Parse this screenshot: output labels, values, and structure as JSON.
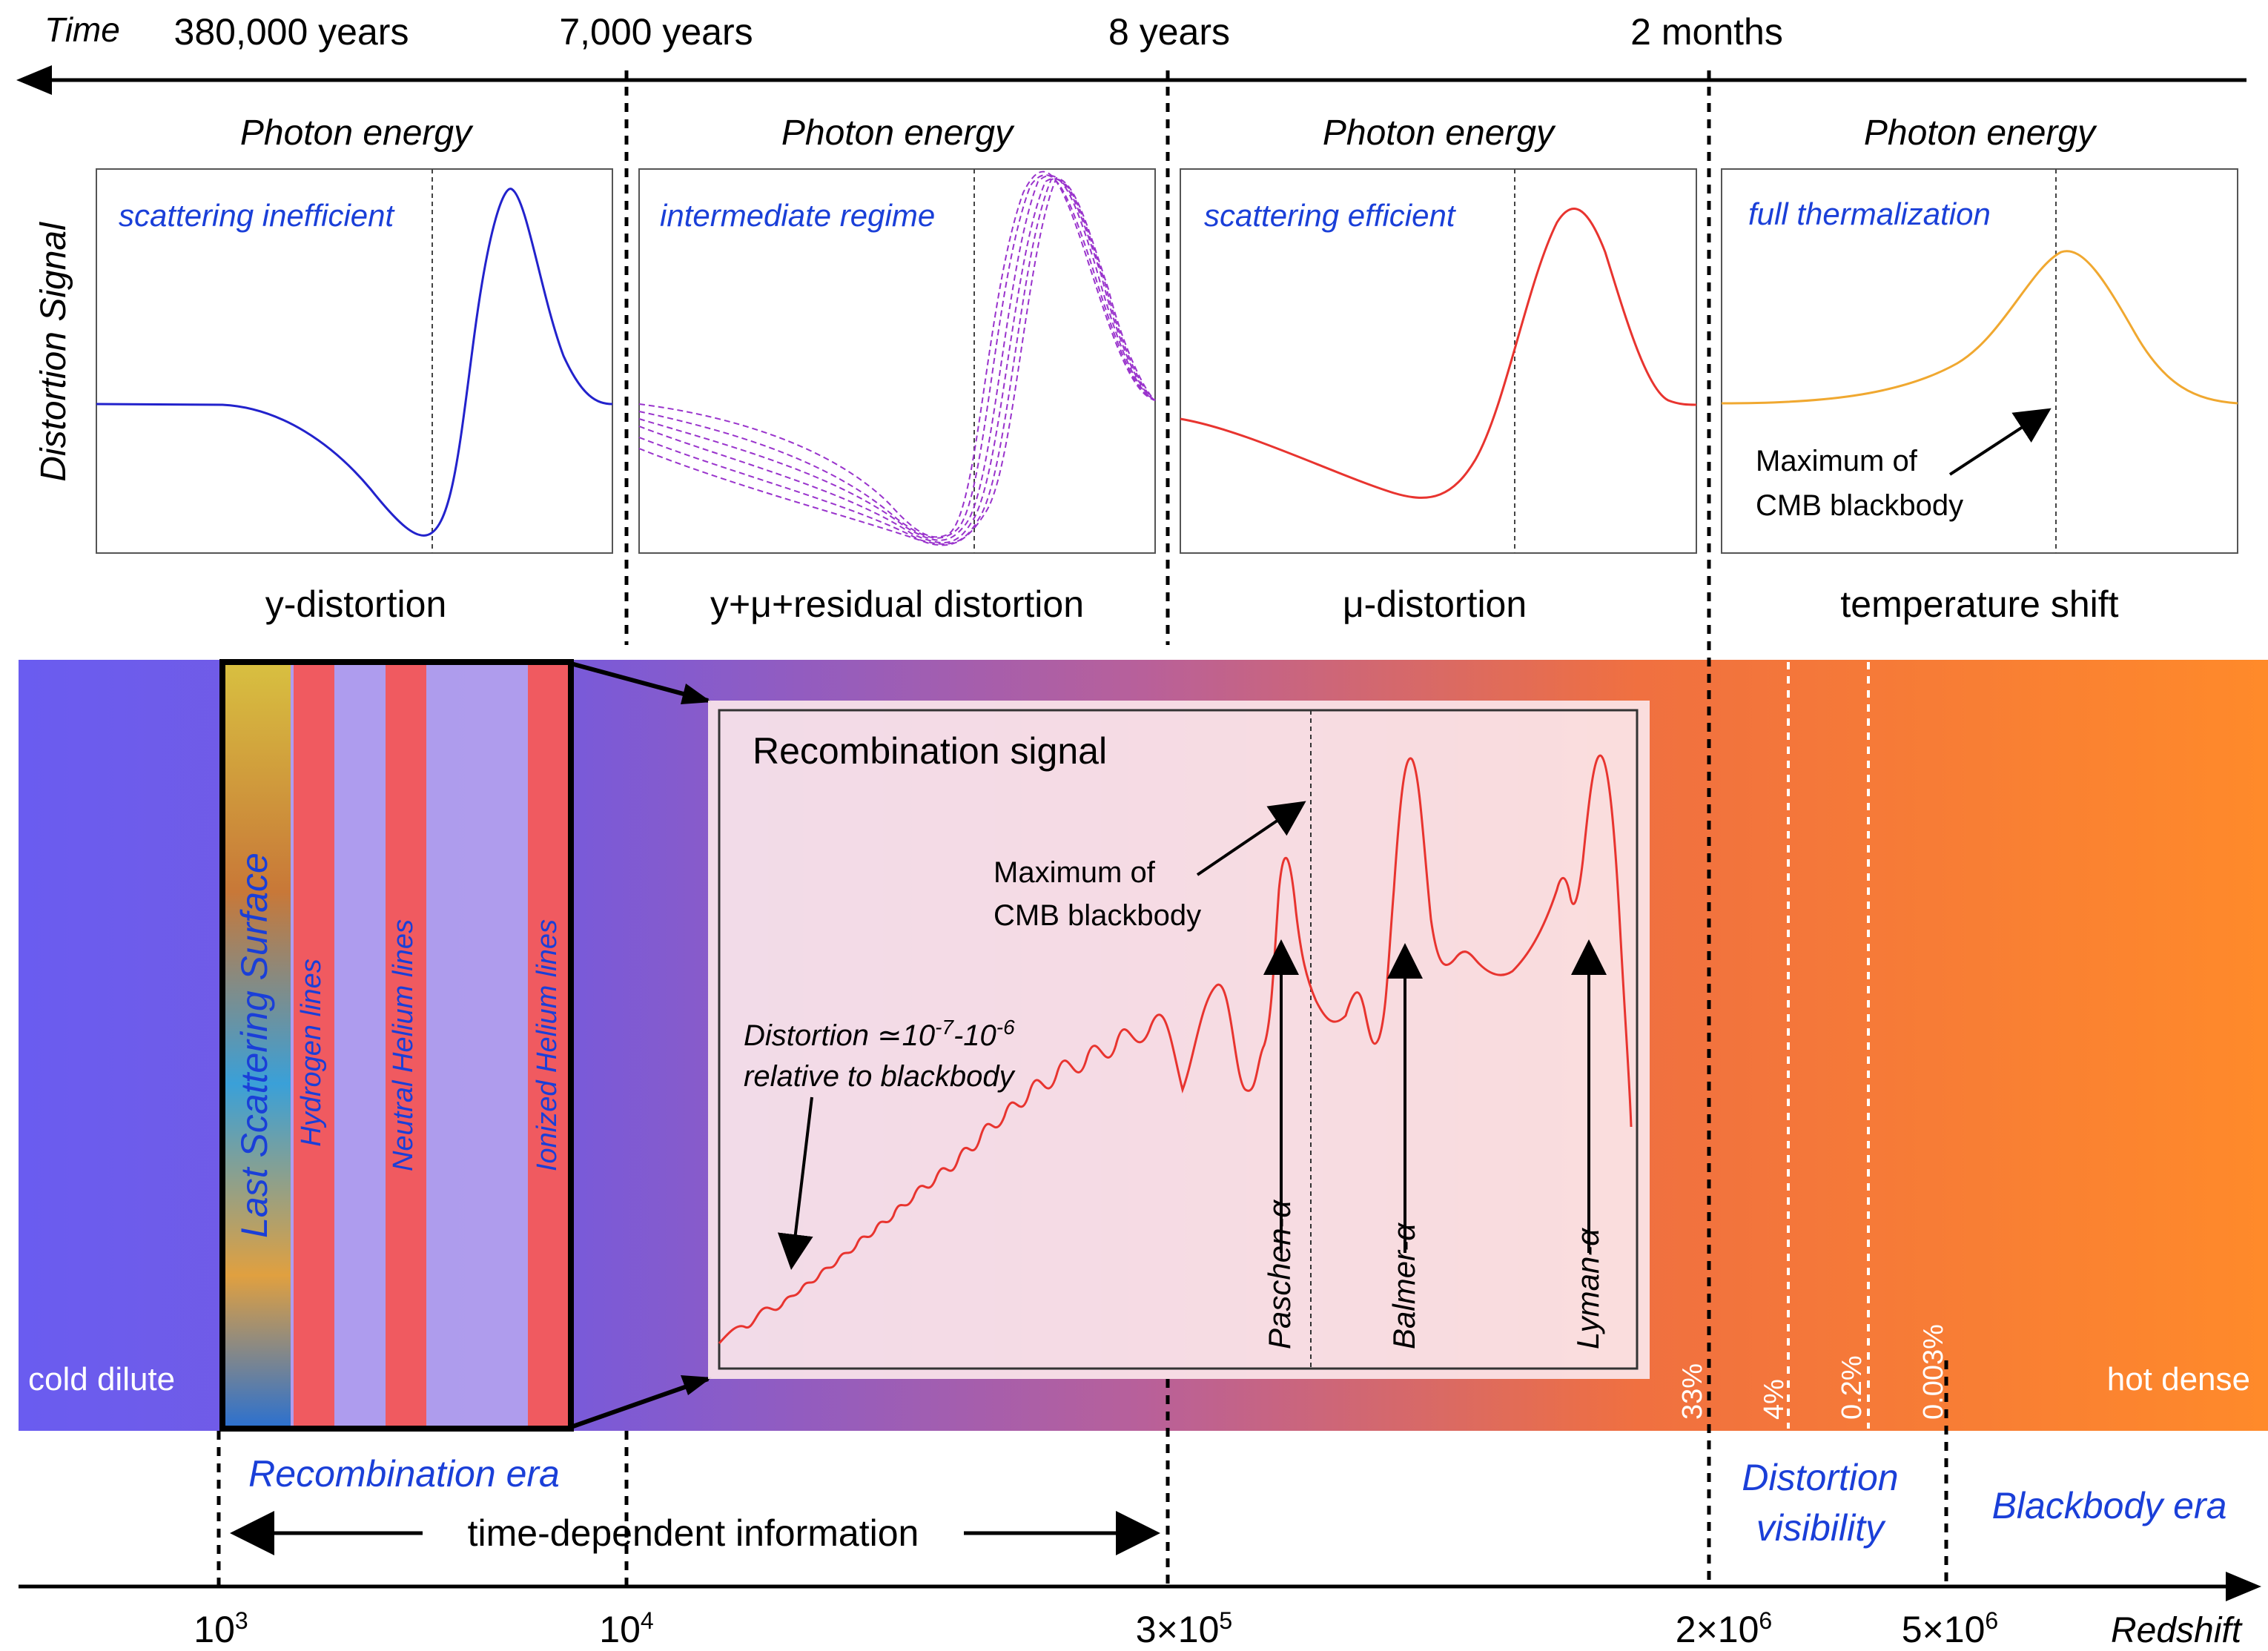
{
  "time_axis": {
    "label": "Time",
    "ticks": [
      "380,000 years",
      "7,000 years",
      "8 years",
      "2 months"
    ]
  },
  "panels": [
    {
      "header": "Photon energy",
      "regime": "scattering inefficient",
      "caption": "y-distortion",
      "color": "#2222cc"
    },
    {
      "header": "Photon energy",
      "regime": "intermediate regime",
      "caption": "y+μ+residual distortion",
      "color": "#9933cc"
    },
    {
      "header": "Photon energy",
      "regime": "scattering efficient",
      "caption": "μ-distortion",
      "color": "#e8342f"
    },
    {
      "header": "Photon energy",
      "regime": "full thermalization",
      "caption": "temperature shift",
      "color": "#f0a830",
      "annotation": [
        "Maximum of",
        "CMB blackbody"
      ]
    }
  ],
  "y_axis_label": "Distortion Signal",
  "band": {
    "left_label": "cold dilute",
    "right_label": "hot dense",
    "vertical_labels": [
      "Last Scattering Surface",
      "Hydrogen lines",
      "Neutral Helium lines",
      "Ionized Helium lines"
    ],
    "visibility_percentages": [
      "33%",
      "4%",
      "0.2%",
      "0.003%"
    ]
  },
  "inset": {
    "title": "Recombination signal",
    "max_annotation": [
      "Maximum of",
      "CMB blackbody"
    ],
    "distortion_note_1": "Distortion ≃10",
    "distortion_exp_1": "-7",
    "distortion_dash": "-10",
    "distortion_exp_2": "-6",
    "distortion_note_2": "relative to blackbody",
    "lines": [
      "Paschen-α",
      "Balmer-α",
      "Lyman-α"
    ]
  },
  "eras": {
    "recombination": "Recombination era",
    "time_dependent": "time-dependent information",
    "visibility_1": "Distortion",
    "visibility_2": "visibility",
    "blackbody": "Blackbody era"
  },
  "redshift_axis": {
    "label": "Redshift",
    "ticks": [
      {
        "base": "10",
        "exp": "3"
      },
      {
        "base": "10",
        "exp": "4"
      },
      {
        "base": "3×10",
        "exp": "5"
      },
      {
        "base": "2×10",
        "exp": "6"
      },
      {
        "base": "5×10",
        "exp": "6"
      }
    ]
  },
  "colors": {
    "regime_text": "#1a3fd8",
    "band_cold": "#6a5cf0",
    "band_hot": "#ff8a2a",
    "line_band": "#f05a60"
  }
}
